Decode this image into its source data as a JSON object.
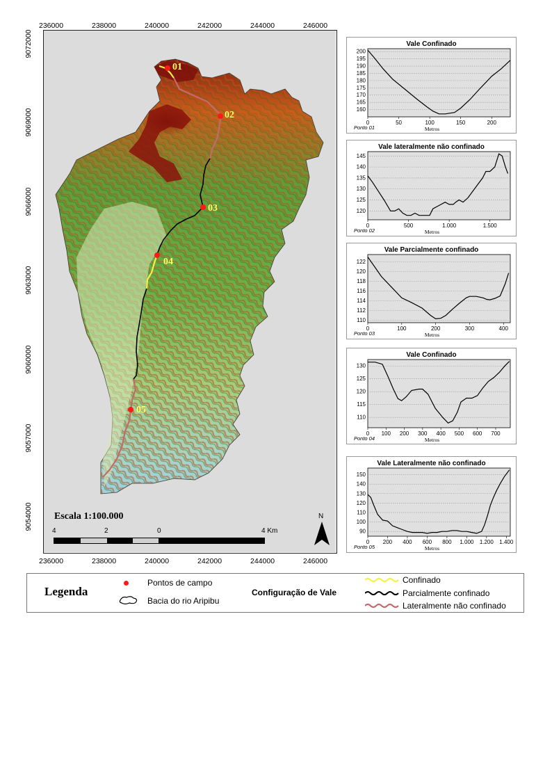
{
  "map": {
    "x_ticks": [
      "236000",
      "238000",
      "240000",
      "242000",
      "244000",
      "246000"
    ],
    "y_ticks": [
      "9072000",
      "9069000",
      "9066000",
      "9063000",
      "9060000",
      "9057000",
      "9054000"
    ],
    "scale_label": "Escala 1:100.000",
    "scale_ticks": [
      "4",
      "2",
      "0",
      "4 Km"
    ],
    "north_label": "N",
    "points": [
      {
        "label": "01",
        "color": "#e41a1c"
      },
      {
        "label": "02",
        "color": "#e41a1c"
      },
      {
        "label": "03",
        "color": "#e41a1c"
      },
      {
        "label": "04",
        "color": "#e41a1c"
      },
      {
        "label": "05",
        "color": "#e41a1c"
      }
    ],
    "colors": {
      "confinado": "#f2f24a",
      "parcialmente": "#000000",
      "lateralmente": "#c26b6b",
      "point": "#ff1a1a",
      "point_label": "#ffff66"
    }
  },
  "profiles": [
    {
      "title": "Vale Confinado",
      "point_label": "Ponto 01",
      "xlabel": "Metros",
      "x_ticks": [
        "0",
        "50",
        "100",
        "150",
        "200"
      ],
      "x_tick_vals": [
        0,
        50,
        100,
        150,
        200
      ],
      "y_ticks": [
        "200",
        "195",
        "190",
        "185",
        "180",
        "175",
        "170",
        "165",
        "160"
      ],
      "y_tick_vals": [
        200,
        195,
        190,
        185,
        180,
        175,
        170,
        165,
        160
      ],
      "xlim": [
        0,
        230
      ],
      "ylim": [
        155,
        202
      ],
      "x": [
        0,
        10,
        25,
        40,
        60,
        80,
        95,
        105,
        115,
        125,
        140,
        150,
        165,
        180,
        200,
        215,
        230
      ],
      "y": [
        201,
        196,
        188,
        181,
        174,
        167,
        162,
        159,
        157,
        157,
        158,
        161,
        167,
        174,
        183,
        188,
        194
      ]
    },
    {
      "title": "Vale lateralmente não confinado",
      "point_label": "Ponto 02",
      "xlabel": "Metros",
      "x_ticks": [
        "0",
        "500",
        "1.000",
        "1.500"
      ],
      "x_tick_vals": [
        0,
        500,
        1000,
        1500
      ],
      "y_ticks": [
        "145",
        "140",
        "135",
        "130",
        "125",
        "120"
      ],
      "y_tick_vals": [
        145,
        140,
        135,
        130,
        125,
        120
      ],
      "xlim": [
        0,
        1750
      ],
      "ylim": [
        116,
        147
      ],
      "x": [
        0,
        60,
        130,
        200,
        280,
        330,
        380,
        430,
        480,
        530,
        580,
        630,
        680,
        720,
        760,
        800,
        850,
        900,
        950,
        1000,
        1050,
        1080,
        1120,
        1170,
        1230,
        1290,
        1350,
        1410,
        1450,
        1500,
        1560,
        1610,
        1650,
        1690,
        1720
      ],
      "y": [
        136,
        133,
        129,
        125,
        120,
        120,
        121,
        119,
        118,
        118,
        119,
        118,
        118,
        118,
        118,
        121,
        122,
        123,
        124,
        123,
        123,
        124,
        125,
        124,
        126,
        129,
        132,
        135,
        138,
        138,
        140,
        146,
        145,
        140,
        137
      ]
    },
    {
      "title": "Vale Parcialmente confinado",
      "point_label": "Ponto 03",
      "xlabel": "Metros",
      "x_ticks": [
        "0",
        "100",
        "200",
        "300",
        "400"
      ],
      "x_tick_vals": [
        0,
        100,
        200,
        300,
        400
      ],
      "y_ticks": [
        "122",
        "120",
        "118",
        "116",
        "114",
        "112",
        "110"
      ],
      "y_tick_vals": [
        122,
        120,
        118,
        116,
        114,
        112,
        110
      ],
      "xlim": [
        0,
        420
      ],
      "ylim": [
        109.5,
        123.5
      ],
      "x": [
        0,
        20,
        40,
        70,
        100,
        130,
        160,
        185,
        200,
        215,
        230,
        250,
        270,
        290,
        300,
        310,
        320,
        340,
        350,
        360,
        375,
        390,
        405,
        415
      ],
      "y": [
        123,
        121,
        119,
        116.8,
        114.6,
        113.6,
        112.5,
        111,
        110.3,
        110.4,
        111,
        112.3,
        113.5,
        114.6,
        114.9,
        114.9,
        114.9,
        114.6,
        114.3,
        114.2,
        114.5,
        115,
        117.5,
        119.7
      ]
    },
    {
      "title": "Vale Confinado",
      "point_label": "Ponto 04",
      "xlabel": "Metros",
      "x_ticks": [
        "0",
        "100",
        "200",
        "300",
        "400",
        "500",
        "600",
        "700"
      ],
      "x_tick_vals": [
        0,
        100,
        200,
        300,
        400,
        500,
        600,
        700
      ],
      "y_ticks": [
        "130",
        "125",
        "120",
        "115",
        "110"
      ],
      "y_tick_vals": [
        130,
        125,
        120,
        115,
        110
      ],
      "xlim": [
        0,
        780
      ],
      "ylim": [
        106,
        132.5
      ],
      "x": [
        0,
        40,
        80,
        110,
        140,
        165,
        185,
        210,
        240,
        280,
        300,
        330,
        370,
        410,
        440,
        465,
        490,
        510,
        540,
        570,
        600,
        630,
        660,
        690,
        720,
        750,
        775
      ],
      "y": [
        131.5,
        131.5,
        130.7,
        126,
        121,
        117.3,
        116.5,
        118,
        120.5,
        121,
        121,
        119,
        113.5,
        110,
        107.8,
        108.7,
        112,
        116,
        117.5,
        117.5,
        118.5,
        121.5,
        124,
        125.5,
        127.5,
        130,
        131.8
      ]
    },
    {
      "title": "Vale Lateralmente não confinado",
      "point_label": "Ponto 05",
      "xlabel": "Metros",
      "x_ticks": [
        "0",
        "200",
        "400",
        "600",
        "800",
        "1.000",
        "1.200",
        "1.400"
      ],
      "x_tick_vals": [
        0,
        200,
        400,
        600,
        800,
        1000,
        1200,
        1400
      ],
      "y_ticks": [
        "150",
        "140",
        "130",
        "120",
        "110",
        "100",
        "90"
      ],
      "y_tick_vals": [
        150,
        140,
        130,
        120,
        110,
        100,
        90
      ],
      "xlim": [
        0,
        1440
      ],
      "ylim": [
        85,
        157
      ],
      "x": [
        0,
        30,
        60,
        100,
        150,
        200,
        250,
        300,
        350,
        400,
        450,
        500,
        550,
        600,
        650,
        700,
        750,
        800,
        850,
        900,
        950,
        1000,
        1050,
        1100,
        1150,
        1180,
        1210,
        1240,
        1270,
        1300,
        1340,
        1380,
        1410,
        1430
      ],
      "y": [
        129,
        126,
        118,
        108,
        102,
        101,
        96,
        94,
        92,
        90,
        89,
        89,
        89,
        88,
        89,
        89,
        90,
        90,
        91,
        91,
        90,
        90,
        89,
        88,
        90,
        97,
        107,
        118,
        126,
        133,
        141,
        148,
        152,
        155
      ]
    }
  ],
  "legend": {
    "title": "Legenda",
    "points_label": "Pontos de campo",
    "basin_label": "Bacia do rio Aripibu",
    "config_title": "Configuração de Vale",
    "confinado": "Confinado",
    "parcialmente": "Parcialmente confinado",
    "lateralmente": "Lateralmente não confinado"
  }
}
